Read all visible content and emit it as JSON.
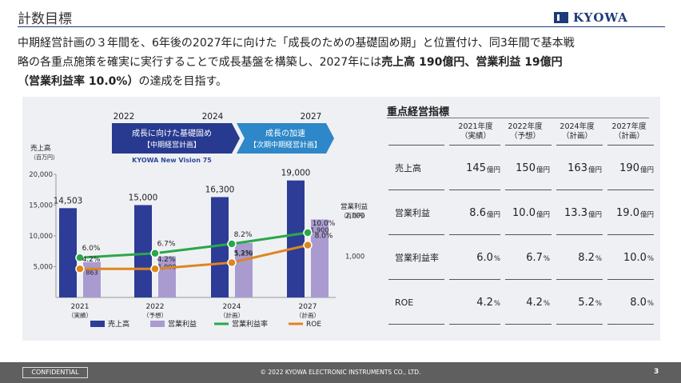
{
  "header": {
    "title": "計数目標",
    "logo_text": "KYOWA"
  },
  "intro": {
    "line1": "中期経営計画の３年間を、6年後の2027年に向けた「成長のための基礎固め期」と位置付け、同3年間で基本戦",
    "line2_a": "略の各重点施策を確実に実行することで成長基盤を構築し、2027年には",
    "line2_b": "売上高 190億円、営業利益 19億円",
    "line3_b": "（営業利益率 10.0%）",
    "line3_a": "の達成を目指す。"
  },
  "chart_data": {
    "type": "bar",
    "categories": [
      "2021\n（実績）",
      "2022\n（予想）",
      "2024\n（計画）",
      "2027\n（計画）"
    ],
    "top_years": [
      "2022",
      "2024",
      "2027"
    ],
    "banner_left": [
      "成長に向けた基礎固め",
      "【中期経営計画】"
    ],
    "banner_right": [
      "成長の加速",
      "【次期中期経営計画】"
    ],
    "banner_caption": "KYOWA New Vision 75",
    "left_axis_title": [
      "売上高",
      "（百万円）"
    ],
    "right_axis_title": [
      "営業利益",
      "（百万円）"
    ],
    "left_ticks": [
      "5,000",
      "10,000",
      "15,000",
      "20,000"
    ],
    "right_ticks": [
      "1,000",
      "2,000"
    ],
    "ylim_left": [
      0,
      20000
    ],
    "ylim_right": [
      0,
      3000
    ],
    "series": [
      {
        "name": "売上高",
        "kind": "bar",
        "axis": "left",
        "values": [
          14503,
          15000,
          16300,
          19000
        ],
        "labels": [
          "14,503",
          "15,000",
          "16,300",
          "19,000"
        ],
        "color": "#2d3c96"
      },
      {
        "name": "営業利益",
        "kind": "bar",
        "axis": "right",
        "values": [
          863,
          1000,
          1330,
          1900
        ],
        "labels": [
          "863",
          "1,000",
          "1,330",
          "1,900"
        ],
        "color": "#a99bd0"
      },
      {
        "name": "営業利益率",
        "kind": "line",
        "values": [
          6.0,
          6.7,
          8.2,
          10.0
        ],
        "labels": [
          "6.0%",
          "6.7%",
          "8.2%",
          "10.0%"
        ],
        "color": "#2aa84a"
      },
      {
        "name": "ROE",
        "kind": "line",
        "values": [
          4.2,
          4.2,
          5.2,
          8.0
        ],
        "labels": [
          "4.2%",
          "4.2%",
          "5.2%",
          "8.0%"
        ],
        "color": "#e0851e"
      }
    ]
  },
  "kpi": {
    "title": "重点経営指標",
    "columns": [
      {
        "year": "2021年度",
        "note": "（実績）"
      },
      {
        "year": "2022年度",
        "note": "（予想）"
      },
      {
        "year": "2024年度",
        "note": "（計画）"
      },
      {
        "year": "2027年度",
        "note": "（計画）"
      }
    ],
    "rows": [
      {
        "label": "売上高",
        "cells": [
          {
            "v": "145",
            "u": "億円"
          },
          {
            "v": "150",
            "u": "億円"
          },
          {
            "v": "163",
            "u": "億円"
          },
          {
            "v": "190",
            "u": "億円"
          }
        ]
      },
      {
        "label": "営業利益",
        "cells": [
          {
            "v": "8.6",
            "u": "億円"
          },
          {
            "v": "10.0",
            "u": "億円"
          },
          {
            "v": "13.3",
            "u": "億円"
          },
          {
            "v": "19.0",
            "u": "億円"
          }
        ]
      },
      {
        "label": "営業利益率",
        "cells": [
          {
            "v": "6.0",
            "u": "%"
          },
          {
            "v": "6.7",
            "u": "%"
          },
          {
            "v": "8.2",
            "u": "%"
          },
          {
            "v": "10.0",
            "u": "%"
          }
        ]
      },
      {
        "label": "ROE",
        "cells": [
          {
            "v": "4.2",
            "u": "%"
          },
          {
            "v": "4.2",
            "u": "%"
          },
          {
            "v": "5.2",
            "u": "%"
          },
          {
            "v": "8.0",
            "u": "%"
          }
        ]
      }
    ]
  },
  "footer": {
    "confidential": "CONFIDENTIAL",
    "copyright": "© 2022 KYOWA ELECTRONIC INSTRUMENTS CO., LTD.",
    "page": "3"
  }
}
